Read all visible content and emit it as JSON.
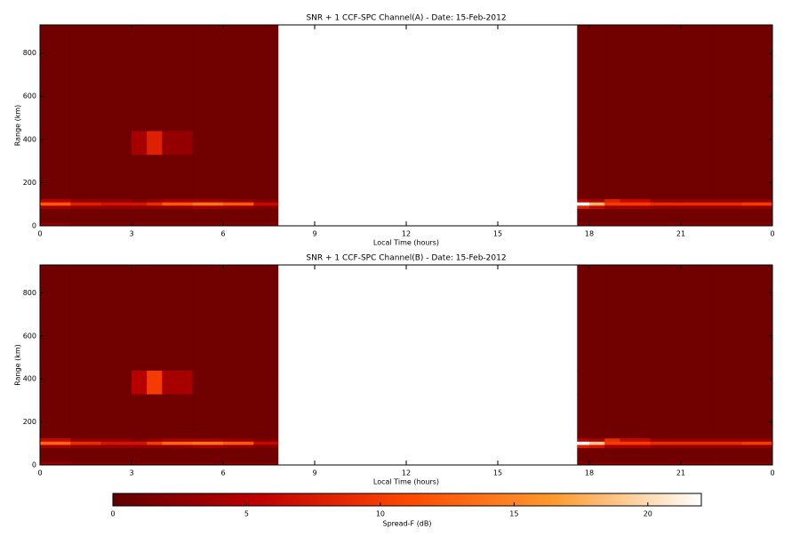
{
  "chart_data": [
    {
      "type": "heatmap",
      "title": "SNR + 1 CCF-SPC Channel(A) - Date: 15-Feb-2012",
      "x_label": "Local Time (hours)",
      "y_label": "Range (km)",
      "x_bins": [
        0,
        1,
        2,
        3,
        3.5,
        4,
        5,
        6,
        7,
        7.8,
        17.6,
        18,
        18.5,
        19,
        20,
        21,
        22,
        23,
        24
      ],
      "y_bins": [
        0,
        15,
        80,
        95,
        110,
        125,
        330,
        440,
        930
      ],
      "z": [
        [
          3,
          2,
          2,
          2,
          2,
          2,
          2,
          2,
          2,
          null,
          2,
          2,
          2,
          2,
          2,
          2,
          2,
          2
        ],
        [
          1,
          1,
          1,
          1,
          1,
          1,
          1,
          1,
          1,
          null,
          1,
          1,
          1,
          1,
          1,
          1,
          1,
          1
        ],
        [
          4,
          3,
          3,
          3,
          3,
          3,
          4,
          3,
          2,
          null,
          8,
          6,
          4,
          4,
          3,
          3,
          3,
          3
        ],
        [
          12,
          8,
          7,
          7,
          9,
          12,
          14,
          12,
          6,
          null,
          22,
          18,
          10,
          10,
          9,
          9,
          9,
          10
        ],
        [
          5,
          3,
          3,
          2,
          3,
          4,
          4,
          3,
          2,
          null,
          5,
          4,
          8,
          6,
          3,
          3,
          3,
          3
        ],
        [
          1,
          1,
          1,
          1,
          1,
          1,
          1,
          1,
          1,
          null,
          1,
          1,
          1,
          1,
          1,
          1,
          1,
          1
        ],
        [
          1,
          1,
          1,
          4,
          8,
          3,
          1,
          1,
          1,
          null,
          1,
          1,
          1,
          1,
          1,
          1,
          1,
          1
        ],
        [
          1,
          1,
          1,
          1,
          1,
          1,
          1,
          1,
          1,
          null,
          1,
          1,
          1,
          1,
          1,
          1,
          1,
          1
        ]
      ],
      "xlim": [
        0,
        24
      ],
      "xticks": [
        0,
        3,
        6,
        9,
        12,
        15,
        18,
        21,
        {
          "value": 24,
          "label": "0"
        }
      ],
      "ylim": [
        0,
        930
      ],
      "yticks": [
        0,
        200,
        400,
        600,
        800
      ]
    },
    {
      "type": "heatmap",
      "title": "SNR + 1 CCF-SPC Channel(B) - Date: 15-Feb-2012",
      "x_label": "Local Time (hours)",
      "y_label": "Range (km)",
      "x_bins": [
        0,
        1,
        2,
        3,
        3.5,
        4,
        5,
        6,
        7,
        7.8,
        17.6,
        18,
        18.5,
        19,
        20,
        21,
        22,
        23,
        24
      ],
      "y_bins": [
        0,
        15,
        80,
        95,
        110,
        125,
        330,
        440,
        930
      ],
      "z": [
        [
          3,
          2,
          2,
          2,
          2,
          2,
          2,
          2,
          2,
          null,
          2,
          2,
          2,
          2,
          2,
          2,
          2,
          2
        ],
        [
          1,
          1,
          1,
          1,
          1,
          1,
          1,
          1,
          1,
          null,
          1,
          1,
          1,
          1,
          1,
          1,
          1,
          1
        ],
        [
          4,
          3,
          3,
          3,
          3,
          3,
          4,
          3,
          2,
          null,
          8,
          7,
          4,
          4,
          3,
          3,
          3,
          3
        ],
        [
          13,
          9,
          7,
          7,
          10,
          13,
          14,
          12,
          6,
          null,
          22,
          19,
          10,
          10,
          9,
          9,
          9,
          10
        ],
        [
          6,
          3,
          3,
          2,
          3,
          4,
          4,
          3,
          2,
          null,
          5,
          4,
          9,
          6,
          3,
          3,
          3,
          3
        ],
        [
          1,
          1,
          1,
          1,
          1,
          1,
          1,
          1,
          1,
          null,
          1,
          1,
          1,
          1,
          1,
          1,
          1,
          1
        ],
        [
          1,
          1,
          1,
          5,
          10,
          4,
          1,
          1,
          1,
          null,
          1,
          1,
          1,
          1,
          1,
          1,
          1,
          1
        ],
        [
          1,
          1,
          1,
          1,
          1,
          1,
          1,
          1,
          1,
          null,
          1,
          1,
          1,
          1,
          1,
          1,
          1,
          1
        ]
      ],
      "xlim": [
        0,
        24
      ],
      "xticks": [
        0,
        3,
        6,
        9,
        12,
        15,
        18,
        21,
        {
          "value": 24,
          "label": "0"
        }
      ],
      "ylim": [
        0,
        930
      ],
      "yticks": [
        0,
        200,
        400,
        600,
        800
      ]
    }
  ],
  "colorbar": {
    "label": "Spread-F (dB)",
    "lim": [
      0,
      22
    ],
    "ticks": [
      0,
      5,
      10,
      15,
      20
    ],
    "colormap": [
      "#600000",
      "#c00000",
      "#ff4800",
      "#ff9a30",
      "#ffffff"
    ]
  }
}
